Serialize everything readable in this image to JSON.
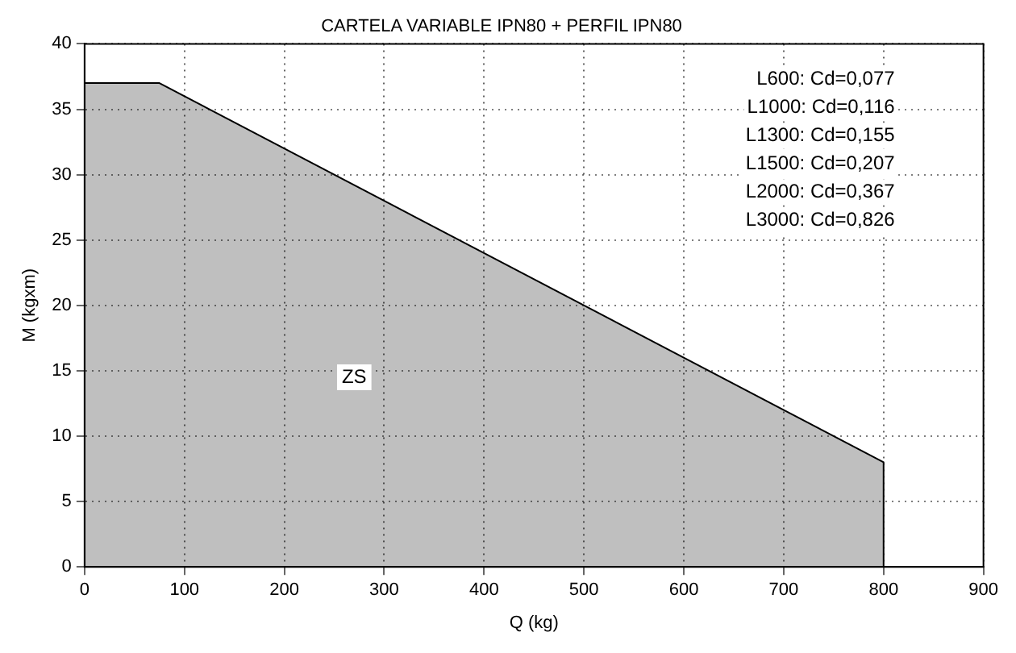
{
  "chart_data": {
    "type": "area",
    "title": "CARTELA VARIABLE IPN80 + PERFIL IPN80",
    "xlabel": "Q (kg)",
    "ylabel": "M (kgxm)",
    "x": [
      0,
      75,
      800,
      800
    ],
    "series": [
      {
        "color": "#000000",
        "values": [
          37,
          37,
          8,
          0
        ]
      }
    ],
    "xlim": [
      0,
      900
    ],
    "xticks": [
      0,
      100,
      200,
      300,
      400,
      500,
      600,
      700,
      800,
      900
    ],
    "ylim": [
      0,
      40
    ],
    "yticks": [
      0,
      5,
      10,
      15,
      20,
      25,
      30,
      35,
      40
    ],
    "grid": true,
    "legend": false,
    "marker": "none",
    "line_style": "solid",
    "annotations": [
      "L600: Cd=0,077",
      "L1000: Cd=0,116",
      "L1300: Cd=0,155",
      "L1500: Cd=0,207",
      "L2000: Cd=0,367",
      "L3000: Cd=0,826",
      {
        "text": "ZS",
        "x": 270,
        "y": 14.5
      }
    ]
  }
}
